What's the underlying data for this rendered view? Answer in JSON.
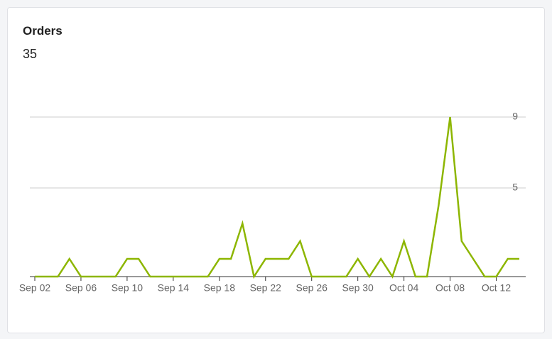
{
  "card": {
    "title": "Orders",
    "total": "35"
  },
  "chart_data": {
    "type": "line",
    "categories": [
      "Sep 02",
      null,
      null,
      null,
      "Sep 06",
      null,
      null,
      null,
      "Sep 10",
      null,
      null,
      null,
      "Sep 14",
      null,
      null,
      null,
      "Sep 18",
      null,
      null,
      null,
      "Sep 22",
      null,
      null,
      null,
      "Sep 26",
      null,
      null,
      null,
      "Sep 30",
      null,
      null,
      null,
      "Oct 04",
      null,
      null,
      null,
      "Oct 08",
      null,
      null,
      null,
      "Oct 12",
      null,
      null
    ],
    "series": [
      {
        "name": "Orders",
        "color": "#8db600",
        "values": [
          0,
          0,
          0,
          1,
          0,
          0,
          0,
          0,
          1,
          1,
          0,
          0,
          0,
          0,
          0,
          0,
          1,
          1,
          3,
          0,
          1,
          1,
          1,
          2,
          0,
          0,
          0,
          0,
          1,
          0,
          1,
          0,
          2,
          0,
          0,
          4,
          9,
          2,
          1,
          0,
          0,
          1,
          1
        ]
      }
    ],
    "ylim": [
      0,
      9
    ],
    "yticks": [
      5,
      9
    ],
    "grid": true
  }
}
